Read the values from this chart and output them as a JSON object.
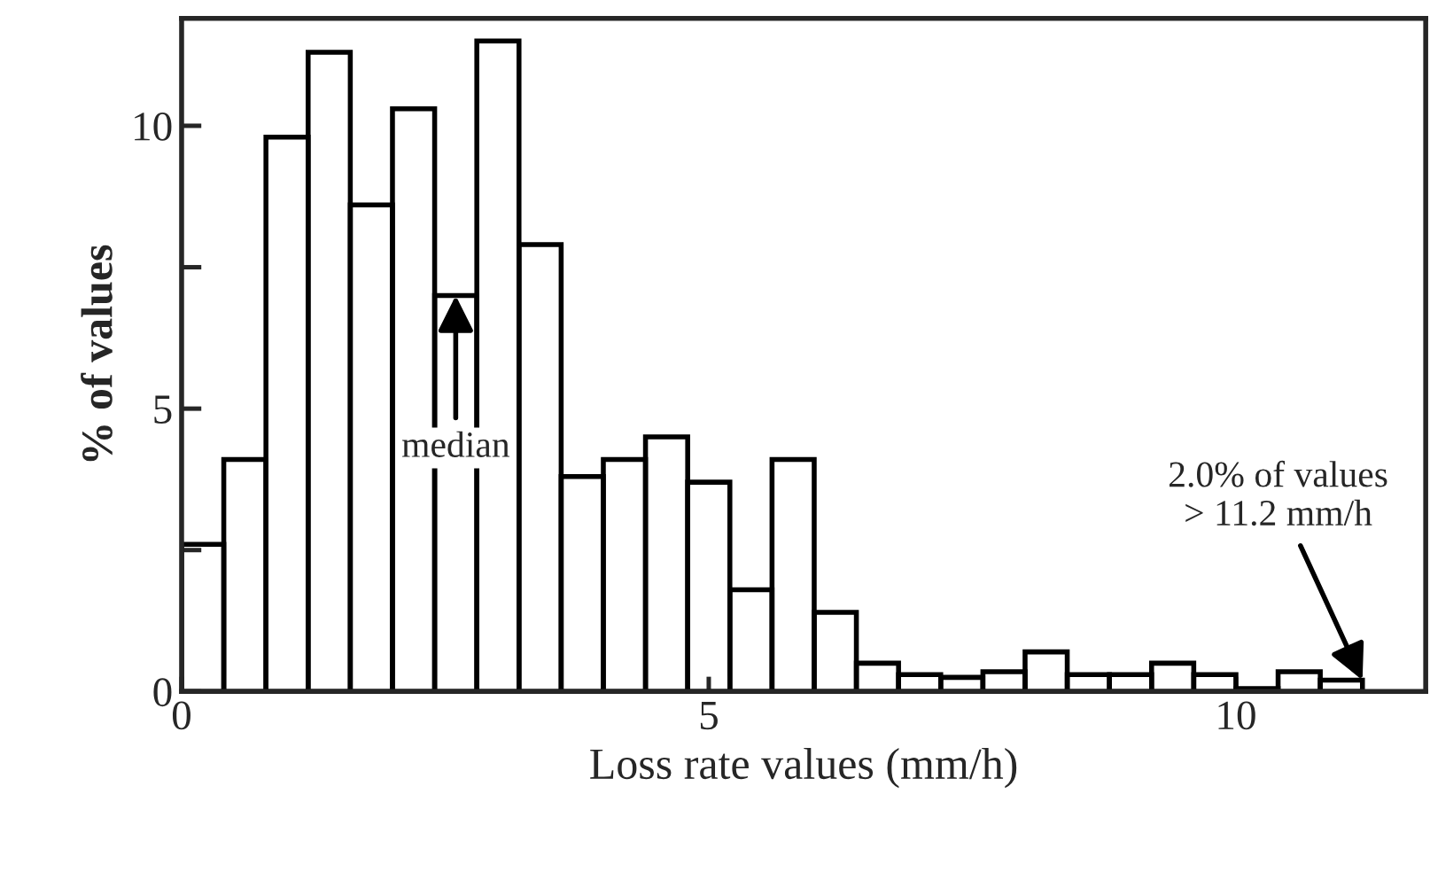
{
  "chart_data": {
    "type": "histogram",
    "xlabel": "Loss rate values (mm/h)",
    "ylabel": "% of values",
    "bins": [
      0,
      0.4,
      0.8,
      1.2,
      1.6,
      2.0,
      2.4,
      2.8,
      3.2,
      3.6,
      4.0,
      4.4,
      4.8,
      5.2,
      5.6,
      6.0,
      6.4,
      6.8,
      7.2,
      7.6,
      8.0,
      8.4,
      8.8,
      9.2,
      9.6,
      10.0,
      10.4,
      10.8,
      11.2
    ],
    "values": [
      2.6,
      4.1,
      9.8,
      11.3,
      8.6,
      10.3,
      7.0,
      11.5,
      7.9,
      3.8,
      4.1,
      4.5,
      3.7,
      1.8,
      4.1,
      1.4,
      0.5,
      0.3,
      0.25,
      0.35,
      0.7,
      0.3,
      0.3,
      0.5,
      0.3,
      0.05,
      0.35,
      0.2
    ],
    "color": "#000000",
    "xlim": [
      0,
      11.8
    ],
    "ylim": [
      0,
      11.9
    ],
    "xticks": [
      0,
      5,
      10
    ],
    "yticks": [
      0,
      {
        "value": 2.5,
        "label": null
      },
      5,
      {
        "value": 7.5,
        "label": null
      },
      10
    ],
    "grid": false,
    "legend": false,
    "annotations": [
      {
        "text": "median",
        "x": 2.6,
        "y": 7.0
      },
      {
        "text": "2.0% of values\n> 11.2 mm/h",
        "x": 11.2,
        "y": 0.2
      }
    ]
  }
}
